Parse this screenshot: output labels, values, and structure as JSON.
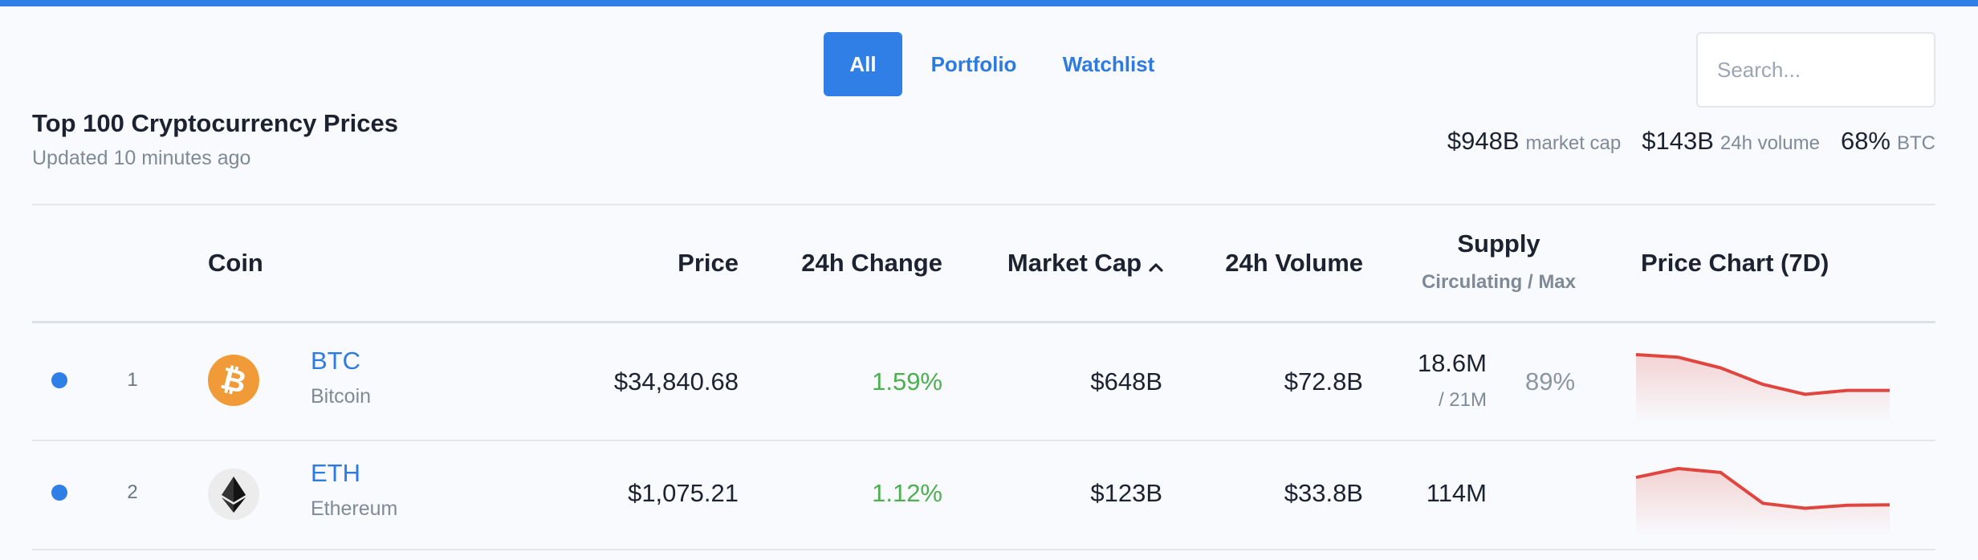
{
  "tabs": [
    {
      "label": "All",
      "active": true
    },
    {
      "label": "Portfolio",
      "active": false
    },
    {
      "label": "Watchlist",
      "active": false
    }
  ],
  "search": {
    "placeholder": "Search..."
  },
  "header": {
    "title": "Top 100 Cryptocurrency Prices",
    "subtitle": "Updated 10 minutes ago"
  },
  "stats": [
    {
      "value": "$948B",
      "label": "market cap"
    },
    {
      "value": "$143B",
      "label": "24h volume"
    },
    {
      "value": "68%",
      "label": "BTC"
    }
  ],
  "columns": {
    "coin": "Coin",
    "price": "Price",
    "change": "24h Change",
    "market_cap": "Market Cap",
    "volume": "24h Volume",
    "supply": "Supply",
    "supply_sub": "Circulating / Max",
    "chart": "Price Chart (7D)"
  },
  "rows": [
    {
      "rank": "1",
      "symbol": "BTC",
      "name": "Bitcoin",
      "icon": "bitcoin-icon",
      "icon_color": "#f09a38",
      "price": "$34,840.68",
      "change": "1.59%",
      "market_cap": "$648B",
      "volume": "$72.8B",
      "supply": "18.6M",
      "supply_max": "/ 21M",
      "supply_pct": "89%",
      "spark": [
        100,
        96,
        80,
        55,
        40,
        46,
        46
      ]
    },
    {
      "rank": "2",
      "symbol": "ETH",
      "name": "Ethereum",
      "icon": "ethereum-icon",
      "icon_color": "#ececec",
      "price": "$1,075.21",
      "change": "1.12%",
      "market_cap": "$123B",
      "volume": "$33.8B",
      "supply": "114M",
      "supply_max": "",
      "supply_pct": "",
      "spark": [
        80,
        98,
        90,
        28,
        18,
        24,
        25
      ]
    }
  ],
  "colors": {
    "accent": "#2f7fe6",
    "positive": "#4caf50",
    "spark_line": "#e0453e"
  }
}
